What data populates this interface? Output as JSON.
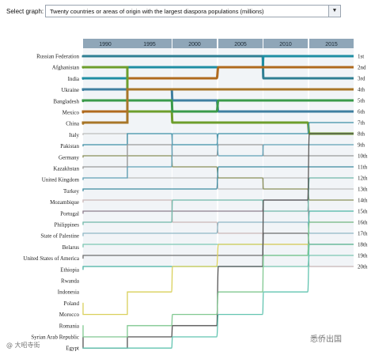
{
  "selector": {
    "label": "Select graph:",
    "value": "Twenty countries or areas of origin with the largest diaspora populations (millions)",
    "arrow_icon": "triangle-down-icon"
  },
  "chart_data": {
    "type": "bump",
    "title": "",
    "xlabel": "",
    "ylabel": "",
    "x": [
      "1990",
      "1995",
      "2000",
      "2005",
      "2010",
      "2015"
    ],
    "rank_labels": [
      "1st",
      "2nd",
      "3rd",
      "4th",
      "5th",
      "6th",
      "7th",
      "8th",
      "9th",
      "10th",
      "11th",
      "12th",
      "13th",
      "14th",
      "15th",
      "16th",
      "17th",
      "18th",
      "19th",
      "20th"
    ],
    "countries": [
      "Russian Federation",
      "Afghanistan",
      "India",
      "Ukraine",
      "Bangladesh",
      "Mexico",
      "China",
      "Italy",
      "Pakistan",
      "Germany",
      "Kazakhstan",
      "United Kingdom",
      "Turkey",
      "Mozambique",
      "Portugal",
      "Philippines",
      "State of Palestine",
      "Belarus",
      "United States of America",
      "Ethiopia",
      "Rwanda",
      "Indonesia",
      "Poland",
      "Morocco",
      "Romania",
      "Syrian Arab Republic",
      "Egypt"
    ],
    "series": [
      {
        "country": "Russian Federation",
        "color": "#2f7f93",
        "ranks": [
          1,
          1,
          1,
          1,
          3,
          3
        ]
      },
      {
        "country": "India",
        "color": "#1f8ea3",
        "ranks": [
          3,
          2,
          2,
          2,
          1,
          1
        ]
      },
      {
        "country": "Mexico",
        "color": "#b06a1e",
        "ranks": [
          6,
          3,
          3,
          2,
          2,
          2
        ]
      },
      {
        "country": "Afghanistan",
        "color": "#6d9e2c",
        "ranks": [
          2,
          6,
          7,
          7,
          7,
          8
        ]
      },
      {
        "country": "Ukraine",
        "color": "#3f7fa0",
        "ranks": [
          4,
          4,
          5,
          6,
          6,
          6
        ]
      },
      {
        "country": "Bangladesh",
        "color": "#3a9a4a",
        "ranks": [
          5,
          5,
          6,
          5,
          5,
          5
        ]
      },
      {
        "country": "China",
        "color": "#a87628",
        "ranks": [
          7,
          4,
          4,
          4,
          4,
          4
        ]
      },
      {
        "country": "Italy",
        "color": "#bdbdbd",
        "ranks": [
          8,
          12,
          12,
          13,
          12,
          13
        ]
      },
      {
        "country": "Pakistan",
        "color": "#3d8fa5",
        "ranks": [
          9,
          8,
          9,
          8,
          8,
          7
        ]
      },
      {
        "country": "Germany",
        "color": "#8a8f5a",
        "ranks": [
          10,
          10,
          11,
          12,
          13,
          14
        ]
      },
      {
        "country": "Kazakhstan",
        "color": "#9a9a9a",
        "ranks": [
          11,
          9,
          10,
          9,
          10,
          10
        ]
      },
      {
        "country": "United Kingdom",
        "color": "#5fa0b5",
        "ranks": [
          12,
          11,
          8,
          10,
          9,
          9
        ]
      },
      {
        "country": "Turkey",
        "color": "#3c8aa0",
        "ranks": [
          13,
          13,
          13,
          11,
          11,
          11
        ]
      },
      {
        "country": "Mozambique",
        "color": "#c9b7b7",
        "ranks": [
          14,
          14,
          16,
          17,
          18,
          20
        ]
      },
      {
        "country": "Portugal",
        "color": "#8c7d8c",
        "ranks": [
          15,
          15,
          15,
          15,
          14,
          16
        ]
      },
      {
        "country": "Philippines",
        "color": "#6fb8a8",
        "ranks": [
          16,
          16,
          14,
          14,
          15,
          12
        ]
      },
      {
        "country": "State of Palestine",
        "color": "#8fb8c6",
        "ranks": [
          17,
          17,
          17,
          16,
          16,
          17
        ]
      },
      {
        "country": "Belarus",
        "color": "#7cc7b3",
        "ranks": [
          18,
          18,
          18,
          18,
          20,
          19
        ]
      },
      {
        "country": "United States of America",
        "color": "#6e6e6e",
        "ranks": [
          19,
          19,
          19,
          19,
          17,
          18
        ]
      },
      {
        "country": "Ethiopia",
        "color": "#4bb3a4",
        "ranks": [
          20,
          20,
          20,
          20,
          19,
          15
        ]
      },
      {
        "country": "Poland",
        "color": "#d9d05a",
        "ranks": [
          23,
          21,
          20,
          18,
          18,
          18
        ]
      },
      {
        "country": "Syrian Arab Republic",
        "color": "#555555",
        "ranks": [
          26,
          25,
          24,
          20,
          14,
          8
        ]
      },
      {
        "country": "Egypt",
        "color": "#62c4b0",
        "ranks": [
          27,
          26,
          25,
          23,
          21,
          18
        ]
      },
      {
        "country": "Romania",
        "color": "#80c890",
        "ranks": [
          25,
          24,
          23,
          21,
          19,
          16
        ]
      }
    ]
  },
  "watermarks": {
    "left": "@ 大昭寺街",
    "right": "悉侨出国"
  }
}
